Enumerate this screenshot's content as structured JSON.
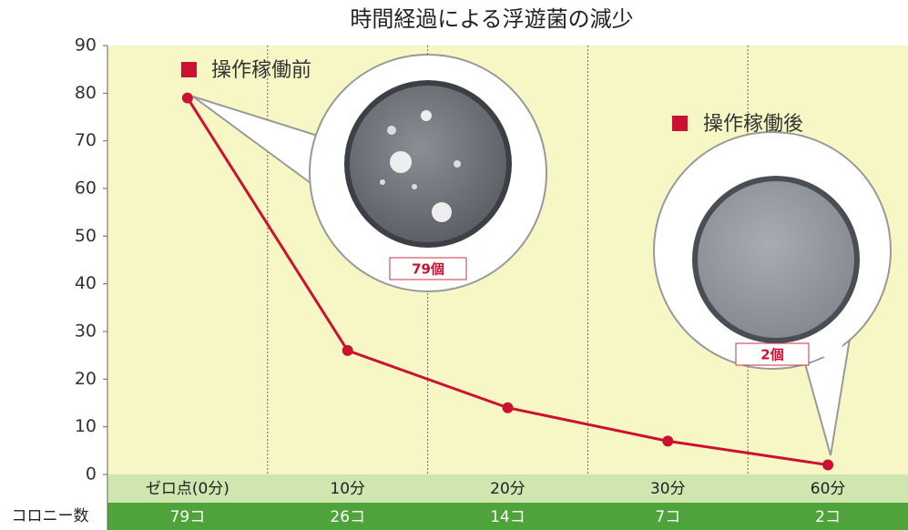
{
  "chart_data": {
    "type": "line",
    "title": "時間経過による浮遊菌の減少",
    "categories": [
      "ゼロ点(0分)",
      "10分",
      "20分",
      "30分",
      "60分"
    ],
    "values": [
      79,
      26,
      14,
      7,
      2
    ],
    "value_labels": [
      "79コ",
      "26コ",
      "14コ",
      "7コ",
      "2コ"
    ],
    "row_label": "コロニー数",
    "color": "#cc1133",
    "ylim": [
      0,
      90
    ],
    "yticks": [
      0,
      10,
      20,
      30,
      40,
      50,
      60,
      70,
      80,
      90
    ],
    "annotations": [
      "操作稼働前",
      "79個",
      "操作稼働後",
      "2個"
    ]
  }
}
